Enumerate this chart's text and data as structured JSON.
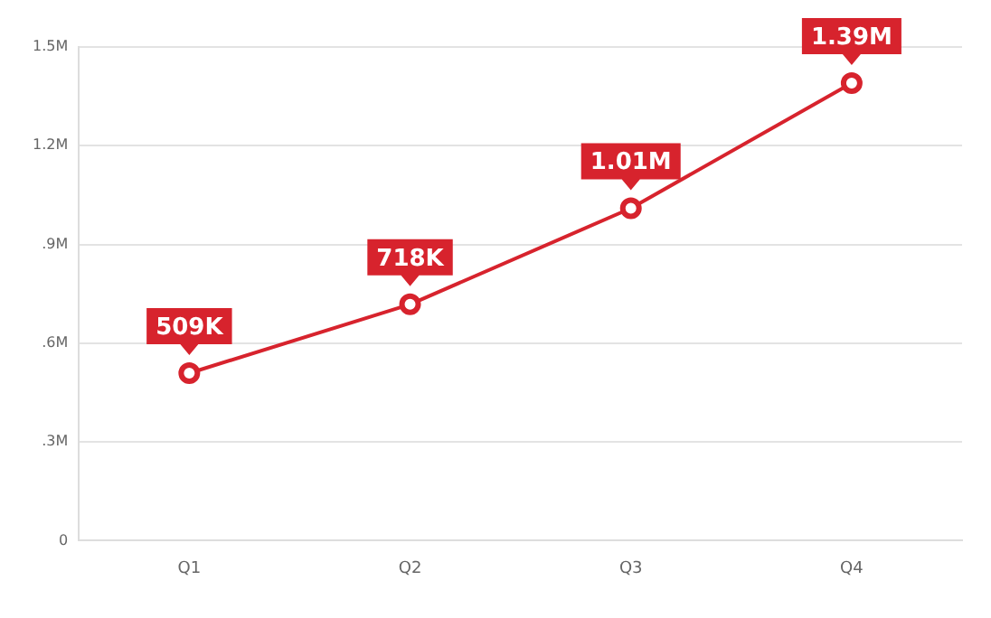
{
  "chart_data": {
    "type": "line",
    "categories": [
      "Q1",
      "Q2",
      "Q3",
      "Q4"
    ],
    "series": [
      {
        "color": "#d7232d",
        "values": [
          509000,
          718000,
          1010000,
          1390000
        ],
        "value_labels": [
          "509K",
          "718K",
          "1.01M",
          "1.39M"
        ]
      }
    ],
    "ylim": [
      0,
      1500000
    ],
    "yticks": [
      {
        "value": 0,
        "label": "0"
      },
      {
        "value": 300000,
        "label": ".3M"
      },
      {
        "value": 600000,
        "label": ".6M"
      },
      {
        "value": 900000,
        "label": ".9M"
      },
      {
        "value": 1200000,
        "label": "1.2M"
      },
      {
        "value": 1500000,
        "label": "1.5M"
      }
    ],
    "grid": "y",
    "marker": "circle",
    "line_style": "solid",
    "legend": false
  }
}
